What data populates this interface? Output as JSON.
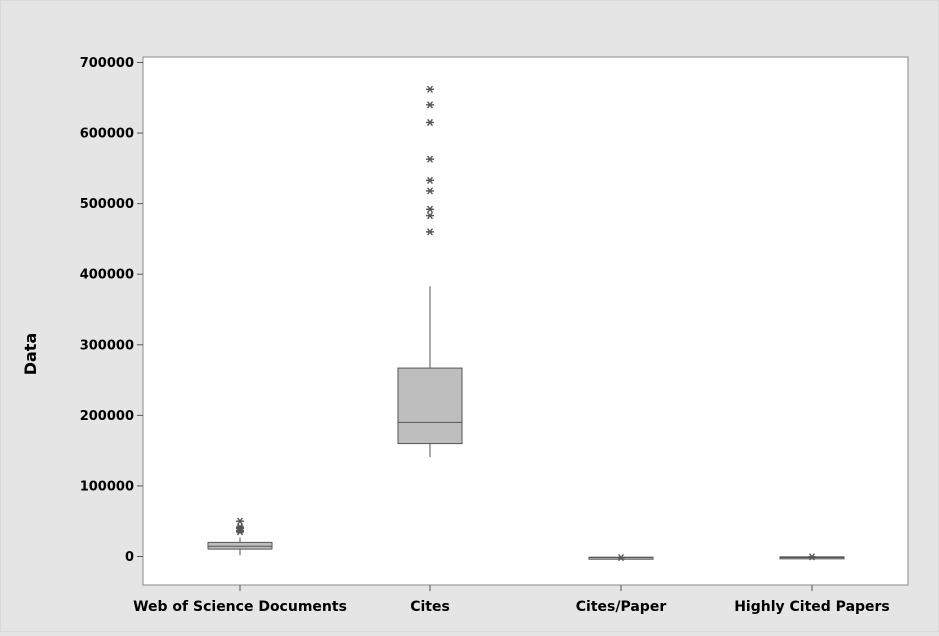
{
  "chart_data": {
    "type": "box",
    "title": "",
    "xlabel": "",
    "ylabel": "Data",
    "ylim": [
      -40000,
      710000
    ],
    "yticks": [
      0,
      100000,
      200000,
      300000,
      400000,
      500000,
      600000,
      700000
    ],
    "ytick_labels": [
      "0",
      "100000",
      "200000",
      "300000",
      "400000",
      "500000",
      "600000",
      "700000"
    ],
    "grid": false,
    "categories": [
      "Web of Science Documents",
      "Cites",
      "Cites/Paper",
      "Highly Cited Papers"
    ],
    "boxes": [
      {
        "category": "Web of Science Documents",
        "whisker_low": 2000,
        "q1": 10500,
        "median": 14500,
        "q3": 20000,
        "whisker_high": 27000,
        "outliers": [
          35000,
          37000,
          40000,
          42000,
          50000
        ]
      },
      {
        "category": "Cites",
        "whisker_low": 141000,
        "q1": 160000,
        "median": 190000,
        "q3": 267000,
        "whisker_high": 383000,
        "outliers": [
          460000,
          483000,
          492000,
          518000,
          533000,
          563000,
          615000,
          640000,
          662000
        ]
      },
      {
        "category": "Cites/Paper",
        "whisker_low": -2500,
        "q1": -2000,
        "median": -1500,
        "q3": -1000,
        "whisker_high": -500,
        "outliers": [
          -1500
        ]
      },
      {
        "category": "Highly Cited Papers",
        "whisker_low": -2500,
        "q1": -2000,
        "median": -1500,
        "q3": -500,
        "whisker_high": 0,
        "outliers": [
          -500
        ]
      }
    ],
    "box_fill": "#bebebe",
    "stroke": "#555555",
    "background": "#e5e5e5",
    "plot_background": "#ffffff"
  }
}
